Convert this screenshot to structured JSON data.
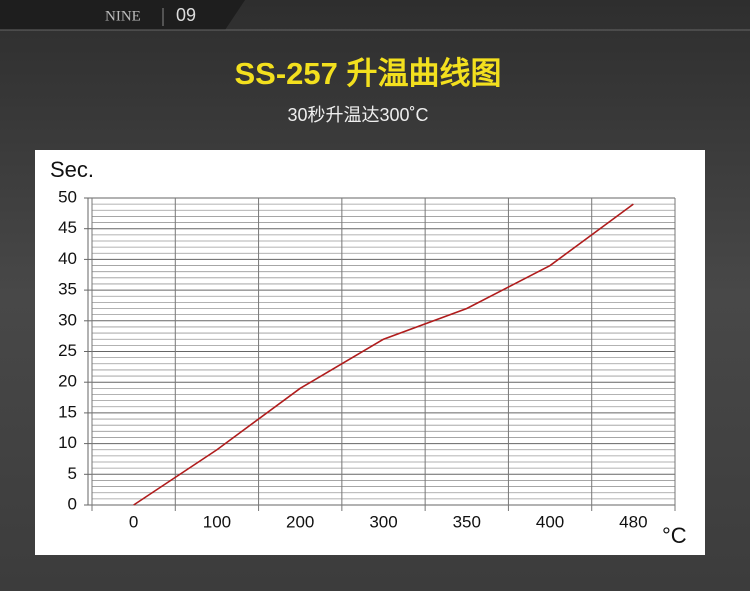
{
  "header": {
    "brand": "NINE",
    "number": "09"
  },
  "chart_data": {
    "type": "line",
    "title": "SS-257 升温曲线图",
    "subtitle": "30秒升温达300˚C",
    "y_label": "Sec.",
    "x_label": "°C",
    "categories": [
      "0",
      "100",
      "200",
      "300",
      "350",
      "400",
      "480"
    ],
    "series": [
      {
        "name": "SS-257",
        "color": "#b01c1c",
        "values": [
          0,
          9,
          19,
          27,
          32,
          39,
          49
        ]
      }
    ],
    "ylim": [
      0,
      50
    ],
    "yticks": [
      0,
      5,
      10,
      15,
      20,
      25,
      30,
      35,
      40,
      45,
      50
    ],
    "yminorticks": [
      1,
      2,
      3,
      4,
      6,
      7,
      8,
      9,
      11,
      12,
      13,
      14,
      16,
      17,
      18,
      19,
      21,
      22,
      23,
      24,
      26,
      27,
      28,
      29,
      31,
      32,
      33,
      34,
      36,
      37,
      38,
      39,
      41,
      42,
      43,
      44,
      46,
      47,
      48,
      49
    ],
    "grid": true
  }
}
